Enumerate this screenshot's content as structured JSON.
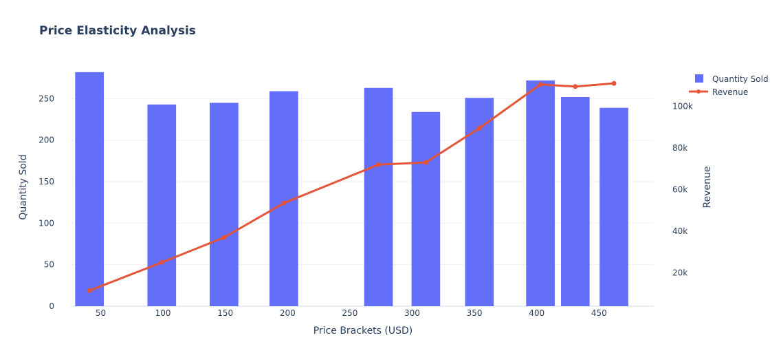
{
  "chart_data": {
    "type": "bar",
    "title": "Price Elasticity Analysis",
    "xlabel": "Price Brackets (USD)",
    "ylabel": "Quantity Sold",
    "y2label": "Revenue",
    "xlim": [
      26,
      494
    ],
    "ylim": [
      0,
      286
    ],
    "y2lim": [
      4000,
      118000
    ],
    "grid": true,
    "legend_position": "top-right",
    "colors": {
      "bars": "#636efa",
      "line": "#e45639",
      "text": "#2a3f5f",
      "grid": "#eef0f4"
    },
    "x_ticks": [
      50,
      100,
      150,
      200,
      250,
      300,
      350,
      400,
      450
    ],
    "y_ticks": [
      0,
      50,
      100,
      150,
      200,
      250
    ],
    "y2_ticks": [
      {
        "value": 20000,
        "label": "20k"
      },
      {
        "value": 40000,
        "label": "40k"
      },
      {
        "value": 60000,
        "label": "60k"
      },
      {
        "value": 80000,
        "label": "80k"
      },
      {
        "value": 100000,
        "label": "100k"
      }
    ],
    "series": [
      {
        "name": "Quantity Sold",
        "type": "bar",
        "axis": "y",
        "x": [
          41,
          99,
          149,
          197,
          273,
          311,
          354,
          403,
          431,
          462
        ],
        "widths": [
          23,
          23,
          23,
          23,
          23,
          23,
          23,
          23,
          23,
          23
        ],
        "values": [
          282,
          243,
          245,
          259,
          263,
          234,
          251,
          272,
          252,
          239
        ]
      },
      {
        "name": "Revenue",
        "type": "line",
        "axis": "y2",
        "x": [
          41,
          99,
          149,
          197,
          273,
          311,
          354,
          403,
          431,
          462
        ],
        "values": [
          11500,
          25000,
          37000,
          53500,
          72000,
          73000,
          89500,
          110500,
          109500,
          111000
        ]
      }
    ]
  }
}
